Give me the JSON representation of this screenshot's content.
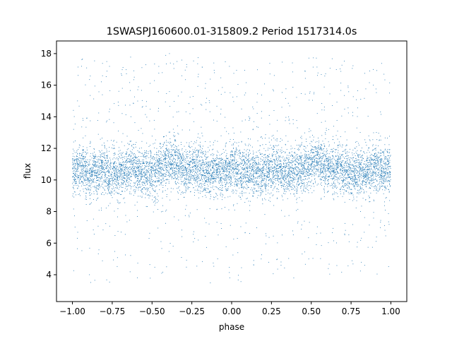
{
  "chart_data": {
    "type": "scatter",
    "title": "1SWASPJ160600.01-315809.2 Period 1517314.0s",
    "xlabel": "phase",
    "ylabel": "flux",
    "xlim": [
      -1.1,
      1.1
    ],
    "ylim": [
      2.3,
      18.8
    ],
    "xticks": [
      -1.0,
      -0.75,
      -0.5,
      -0.25,
      0.0,
      0.25,
      0.5,
      0.75,
      1.0
    ],
    "xtick_labels": [
      "−1.00",
      "−0.75",
      "−0.50",
      "−0.25",
      "0.00",
      "0.25",
      "0.50",
      "0.75",
      "1.00"
    ],
    "yticks": [
      4,
      6,
      8,
      10,
      12,
      14,
      16,
      18
    ],
    "ytick_labels": [
      "4",
      "6",
      "8",
      "10",
      "12",
      "14",
      "16",
      "18"
    ],
    "grid": false,
    "marker_color": "#1f77b4",
    "series": [
      {
        "points_x": [
          -0.99,
          -0.965,
          -0.94,
          -0.915,
          -0.89,
          -0.865,
          -0.84,
          -0.815,
          -0.79,
          -0.765,
          -0.74,
          -0.715,
          -0.69,
          -0.665,
          -0.64,
          -0.615,
          -0.59,
          -0.565,
          -0.54,
          -0.515,
          -0.49,
          -0.465,
          -0.44,
          -0.415,
          -0.39,
          -0.365,
          -0.34,
          -0.315,
          -0.29,
          -0.265,
          -0.24,
          -0.215,
          -0.19,
          -0.165,
          -0.14,
          -0.115,
          -0.09,
          -0.065,
          -0.04,
          -0.015,
          0.01,
          0.035,
          0.06,
          0.085,
          0.11,
          0.135,
          0.16,
          0.185,
          0.21,
          0.235,
          0.26,
          0.285,
          0.31,
          0.335,
          0.36,
          0.385,
          0.41,
          0.435,
          0.46,
          0.485,
          0.51,
          0.535,
          0.56,
          0.585,
          0.61,
          0.635,
          0.66,
          0.685,
          0.71,
          0.735,
          0.76,
          0.785,
          0.81,
          0.835,
          0.86,
          0.885,
          0.91,
          0.935,
          0.96,
          0.985
        ],
        "points_y_median": [
          10.6,
          10.7,
          10.8,
          10.5,
          10.4,
          10.6,
          10.5,
          10.7,
          10.6,
          10.4,
          10.5,
          10.3,
          10.5,
          10.6,
          10.8,
          10.9,
          10.7,
          10.5,
          10.4,
          10.6,
          10.5,
          10.7,
          10.9,
          11.0,
          11.1,
          11.2,
          11.0,
          10.8,
          10.6,
          10.7,
          10.9,
          10.8,
          10.6,
          10.5,
          10.4,
          10.6,
          10.5,
          10.4,
          10.6,
          10.7,
          10.8,
          10.6,
          10.5,
          10.7,
          10.6,
          10.4,
          10.5,
          10.3,
          10.5,
          10.6,
          10.8,
          10.9,
          10.7,
          10.5,
          10.4,
          10.6,
          10.5,
          10.7,
          10.9,
          11.0,
          11.1,
          11.2,
          11.0,
          10.8,
          10.6,
          10.7,
          10.9,
          10.8,
          10.6,
          10.5,
          10.4,
          10.6,
          10.5,
          10.4,
          10.6,
          10.7,
          10.8,
          10.6,
          10.5,
          10.7
        ]
      }
    ]
  }
}
